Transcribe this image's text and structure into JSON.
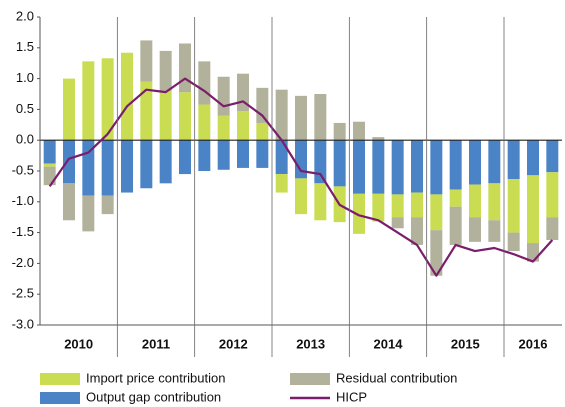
{
  "chart_data": {
    "type": "stacked-bar-line",
    "categories": [
      null,
      null,
      null,
      null,
      null,
      null,
      null,
      null,
      null,
      null,
      null,
      null,
      null,
      null,
      null,
      null,
      null,
      null,
      null,
      null,
      null,
      null,
      null,
      null,
      null,
      null,
      null
    ],
    "year_labels": [
      "2010",
      "2011",
      "2012",
      "2013",
      "2014",
      "2015",
      "2016"
    ],
    "series": [
      {
        "name": "Output gap contribution",
        "kind": "bar",
        "color": "#4a84c6",
        "values": [
          -0.38,
          -0.7,
          -0.9,
          -0.9,
          -0.85,
          -0.78,
          -0.7,
          -0.55,
          -0.5,
          -0.48,
          -0.45,
          -0.45,
          -0.55,
          -0.62,
          -0.7,
          -0.75,
          -0.87,
          -0.87,
          -0.88,
          -0.85,
          -0.88,
          -0.8,
          -0.72,
          -0.7,
          -0.63,
          -0.57,
          -0.52
        ]
      },
      {
        "name": "Import price contribution",
        "kind": "bar",
        "color": "#c9dc52",
        "values": [
          -0.05,
          1.0,
          1.28,
          1.33,
          1.42,
          0.95,
          0.8,
          0.78,
          0.58,
          0.4,
          0.47,
          0.28,
          -0.3,
          -0.58,
          -0.6,
          -0.58,
          -0.65,
          -0.45,
          -0.37,
          -0.4,
          -0.58,
          -0.28,
          -0.53,
          -0.6,
          -0.87,
          -1.1,
          -0.73
        ]
      },
      {
        "name": "Residual contribution",
        "kind": "bar",
        "color": "#b2b19b",
        "values": [
          -0.3,
          -0.6,
          -0.58,
          -0.3,
          0,
          0.67,
          0.65,
          0.79,
          0.7,
          0.63,
          0.61,
          0.57,
          0.82,
          0.72,
          0.75,
          0.28,
          0.3,
          0.05,
          -0.18,
          -0.45,
          -0.74,
          -0.62,
          -0.4,
          -0.35,
          -0.3,
          -0.3,
          -0.37
        ]
      },
      {
        "name": "HICP",
        "kind": "line",
        "color": "#7a1e6c",
        "values": [
          -0.75,
          -0.3,
          -0.2,
          0.1,
          0.55,
          0.82,
          0.78,
          1.0,
          0.8,
          0.55,
          0.63,
          0.4,
          0.0,
          -0.5,
          -0.55,
          -1.05,
          -1.22,
          -1.3,
          -1.5,
          -1.7,
          -2.2,
          -1.7,
          -1.8,
          -1.75,
          -1.85,
          -1.97,
          -1.62
        ]
      }
    ],
    "ylim": [
      -3,
      2
    ],
    "yticks": [
      {
        "value": 2,
        "label": "2.0"
      },
      {
        "value": 1.5,
        "label": "1.5"
      },
      {
        "value": 1,
        "label": "1.0"
      },
      {
        "value": 0.5,
        "label": "0.5"
      },
      {
        "value": 0,
        "label": "0.0"
      },
      {
        "value": -0.5,
        "label": "-0.5"
      },
      {
        "value": -1,
        "label": "-1.0"
      },
      {
        "value": -1.5,
        "label": "-1.5"
      },
      {
        "value": -2,
        "label": "-2.0"
      },
      {
        "value": -2.5,
        "label": "-2.5"
      },
      {
        "value": -3,
        "label": "-3.0"
      }
    ]
  }
}
